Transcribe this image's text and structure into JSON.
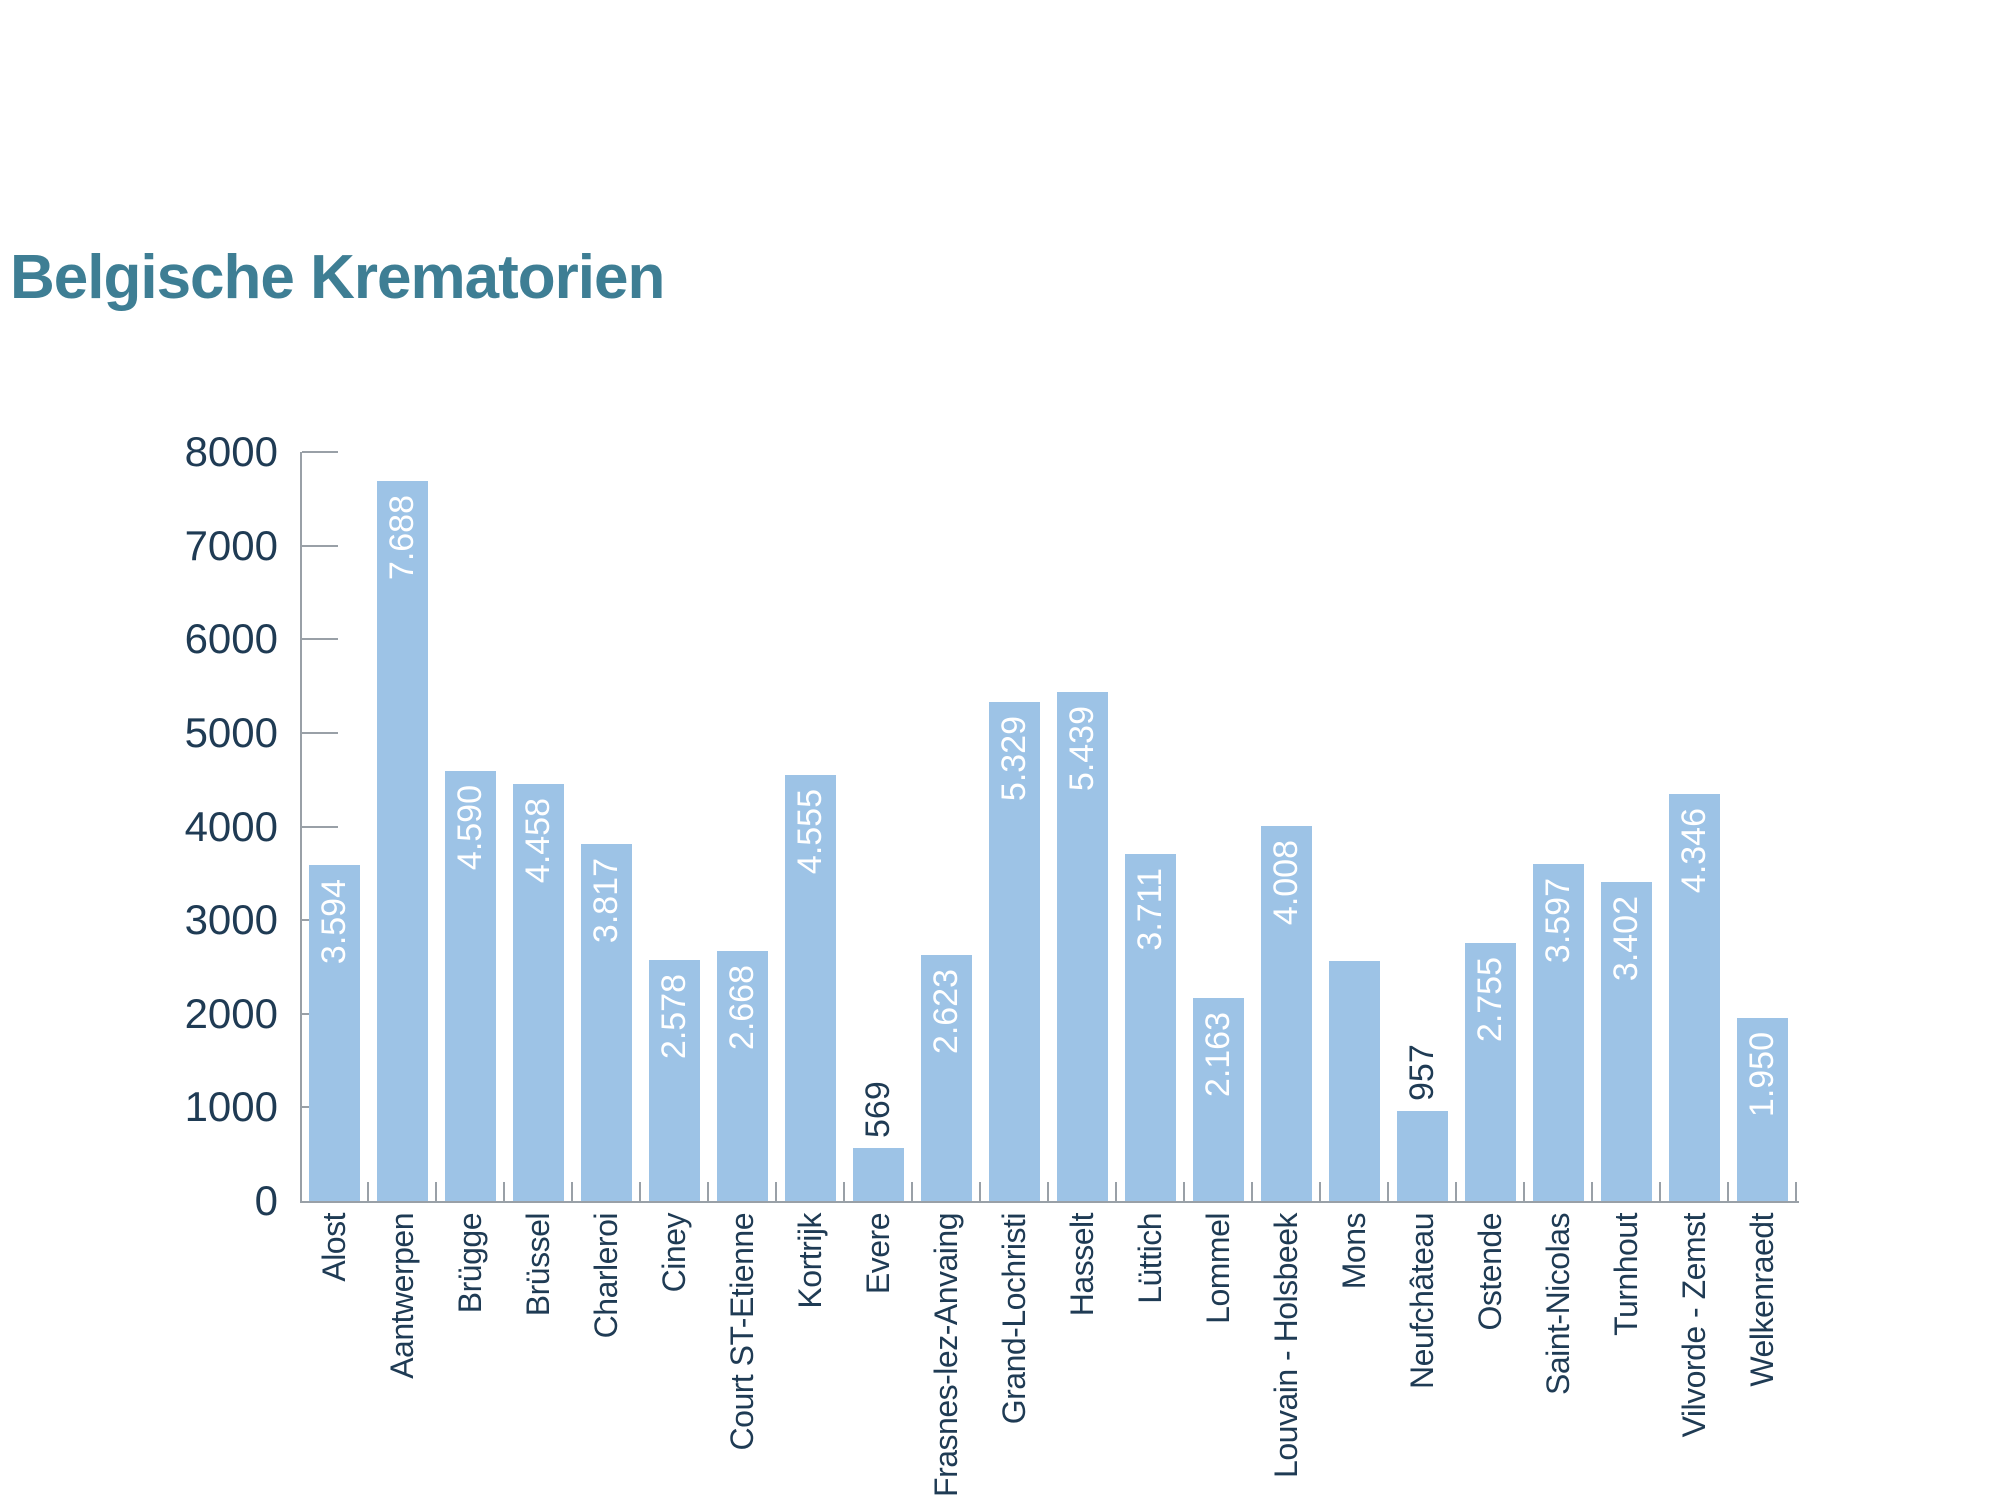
{
  "title": "Belgische Krematorien",
  "colors": {
    "background": "#FFFFFF",
    "title_text": "#3E7E94",
    "bar_fill": "#9DC3E6",
    "axis_text": "#1F3B54",
    "axis_line": "#99A0A7",
    "value_label_inside": "#FFFFFF",
    "value_label_above": "#1F3B54"
  },
  "y_axis": {
    "min": 0,
    "max": 8000,
    "step": 1000,
    "tick_labels": [
      "8000",
      "7000",
      "6000",
      "5000",
      "4000",
      "3000",
      "2000",
      "1000",
      "0"
    ]
  },
  "chart_data": {
    "type": "bar",
    "title": "Belgische Krematorien",
    "ylim": [
      0,
      8000
    ],
    "grid": false,
    "legend": false,
    "categories": [
      "Alost",
      "Aantwerpen",
      "Brügge",
      "Brüssel",
      "Charleroi",
      "Ciney",
      "Court ST-Etienne",
      "Kortrijk",
      "Evere",
      "Frasnes-lez-Anvaing",
      "Grand-Lochristi",
      "Hasselt",
      "Lüttich",
      "Lommel",
      "Louvain - Holsbeek",
      "Mons",
      "Neufchâteau",
      "Ostende",
      "Saint-Nicolas",
      "Turnhout",
      "Vilvorde - Zemst",
      "Welkenraedt"
    ],
    "values": [
      3594,
      7688,
      4590,
      4458,
      3817,
      2578,
      2668,
      4555,
      569,
      2623,
      5329,
      5439,
      3711,
      2163,
      4008,
      2565,
      957,
      2755,
      3597,
      3402,
      4346,
      1950
    ],
    "value_labels": [
      "3.594",
      "7.688",
      "4.590",
      "4.458",
      "3.817",
      "2.578",
      "2.668",
      "4.555",
      "569",
      "2.623",
      "5.329",
      "5.439",
      "3.711",
      "2.163",
      "4.008",
      null,
      "957",
      "2.755",
      "3.597",
      "3.402",
      "4.346",
      "1.950"
    ],
    "label_placement": [
      "inside",
      "inside",
      "inside",
      "inside",
      "inside",
      "inside",
      "inside",
      "inside",
      "above",
      "inside",
      "inside",
      "inside",
      "inside",
      "inside",
      "inside",
      "none",
      "above",
      "inside",
      "inside",
      "inside",
      "inside",
      "inside"
    ]
  }
}
